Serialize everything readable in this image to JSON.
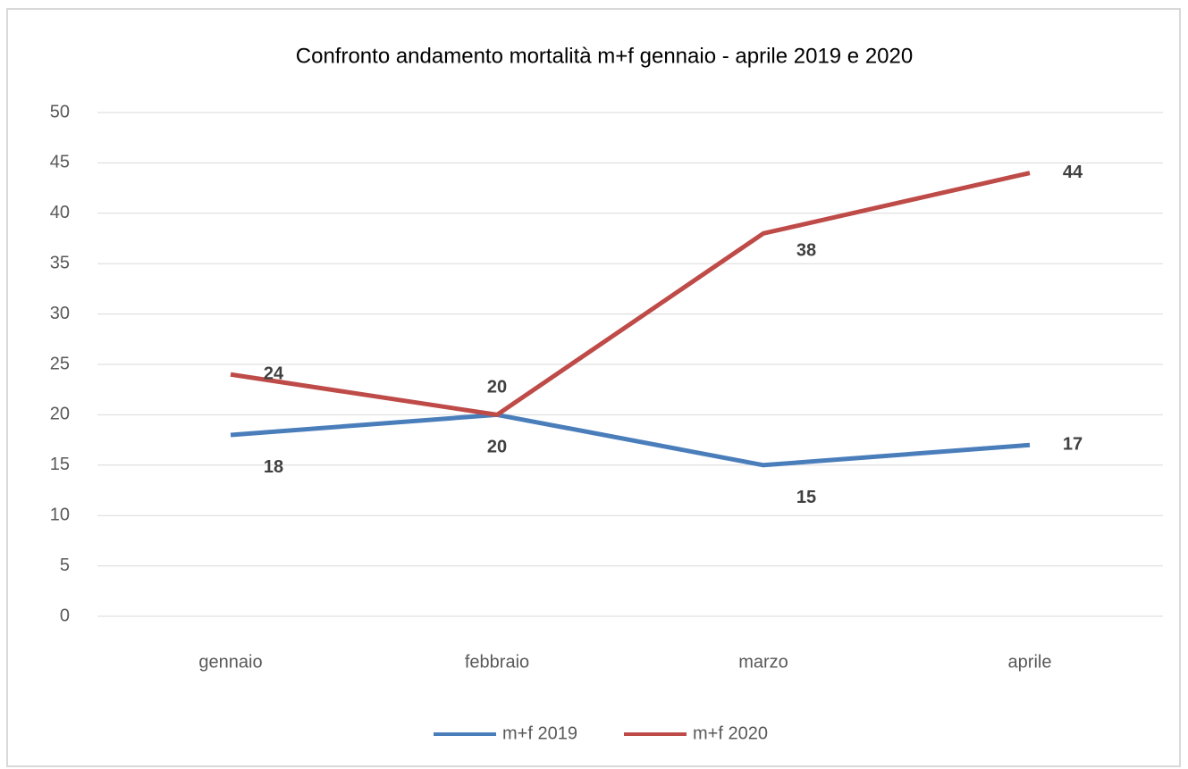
{
  "chart_data": {
    "type": "line",
    "title": "Confronto andamento mortalità m+f gennaio - aprile 2019 e 2020",
    "categories": [
      "gennaio",
      "febbraio",
      "marzo",
      "aprile"
    ],
    "series": [
      {
        "name": "m+f 2019",
        "color": "#4a7ebb",
        "values": [
          18,
          20,
          15,
          17
        ]
      },
      {
        "name": "m+f 2020",
        "color": "#be4b48",
        "values": [
          24,
          20,
          38,
          44
        ]
      }
    ],
    "ylim": [
      0,
      50
    ],
    "yticks": [
      0,
      5,
      10,
      15,
      20,
      25,
      30,
      35,
      40,
      45,
      50
    ],
    "grid": true,
    "legend": "bottom"
  }
}
